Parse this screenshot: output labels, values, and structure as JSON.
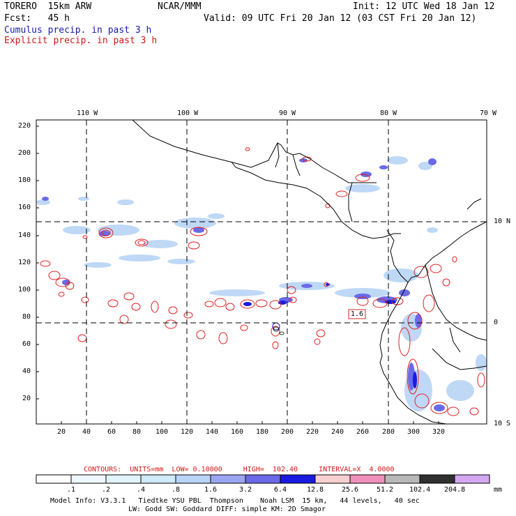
{
  "header": {
    "model": "TORERO  15km ARW",
    "org": "NCAR/MMM",
    "init": "Init: 12 UTC Wed 18 Jan 12",
    "fcst": "Fcst:   45 h",
    "valid": "Valid: 09 UTC Fri 20 Jan 12 (03 CST Fri 20 Jan 12)",
    "legend1": "Cumulus precip. in past 3 h",
    "legend2": "Explicit precip. in past 3 h"
  },
  "map": {
    "lon_labels": [
      "110 W",
      "100 W",
      "90 W",
      "80 W",
      "70 W"
    ],
    "lat_labels": [
      "10 N",
      "0",
      "10 S"
    ],
    "y_ticks": [
      "220",
      "200",
      "180",
      "160",
      "140",
      "120",
      "100",
      "80",
      "60",
      "40",
      "20"
    ],
    "x_ticks": [
      "20",
      "40",
      "60",
      "80",
      "100",
      "120",
      "140",
      "160",
      "180",
      "200",
      "220",
      "240",
      "260",
      "280",
      "300",
      "320"
    ],
    "contour_label": "1.6"
  },
  "contours_info": {
    "text": "CONTOURS:  UNITS=mm  LOW= 0.10000     HIGH=  102.40     INTERVAL=X  4.0000"
  },
  "colorbar": {
    "labels": [
      ".1",
      ".2",
      ".4",
      ".8",
      "1.6",
      "3.2",
      "6.4",
      "12.8",
      "25.6",
      "51.2",
      "102.4",
      "204.8"
    ],
    "units": "mm",
    "colors": [
      "#ffffff",
      "#f0f8ff",
      "#e0f4fa",
      "#cfeaf8",
      "#b8d4f6",
      "#9aa6ef",
      "#6a6ae8",
      "#1a1ae0",
      "#f6d0d0",
      "#f090b8",
      "#b8b8b8",
      "#303030",
      "#d4a8f0"
    ]
  },
  "footer": {
    "line1": "Model Info: V3.3.1   Tiedtke YSU PBL  Thompson    Noah LSM  15 km,   44 levels,   40 sec",
    "line2": "LW: Godd SW: Goddard DIFF: simple KM: 2D Smagor"
  }
}
